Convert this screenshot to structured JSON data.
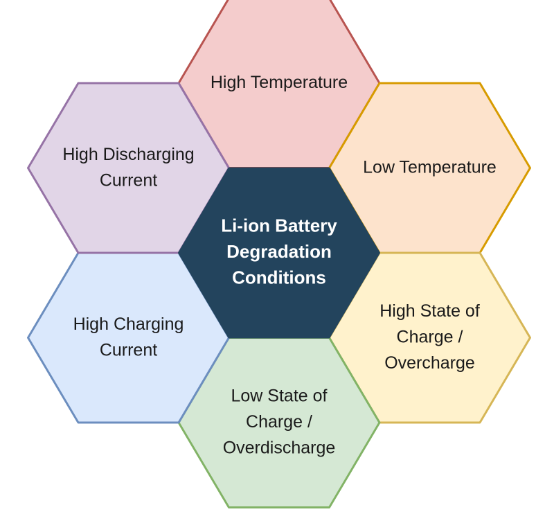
{
  "center": {
    "lines": [
      "Li-ion Battery",
      "Degradation",
      "Conditions"
    ],
    "fill": "#23445d",
    "stroke": "#23445d"
  },
  "cells": [
    {
      "id": "high-temperature",
      "lines": [
        "High Temperature"
      ],
      "fill": "#f4cccc",
      "stroke": "#b85450"
    },
    {
      "id": "low-temperature",
      "lines": [
        "Low Temperature"
      ],
      "fill": "#fde3cc",
      "stroke": "#d79b00"
    },
    {
      "id": "high-state-of-charge",
      "lines": [
        "High State of",
        "Charge /",
        "Overcharge"
      ],
      "fill": "#fff2cc",
      "stroke": "#d6b656"
    },
    {
      "id": "low-state-of-charge",
      "lines": [
        "Low State of",
        "Charge /",
        "Overdischarge"
      ],
      "fill": "#d5e8d4",
      "stroke": "#82b366"
    },
    {
      "id": "high-charging-current",
      "lines": [
        "High Charging",
        "Current"
      ],
      "fill": "#dae8fc",
      "stroke": "#6c8ebf"
    },
    {
      "id": "high-discharging-current",
      "lines": [
        "High Discharging",
        "Current"
      ],
      "fill": "#e1d5e7",
      "stroke": "#9673a6"
    }
  ]
}
